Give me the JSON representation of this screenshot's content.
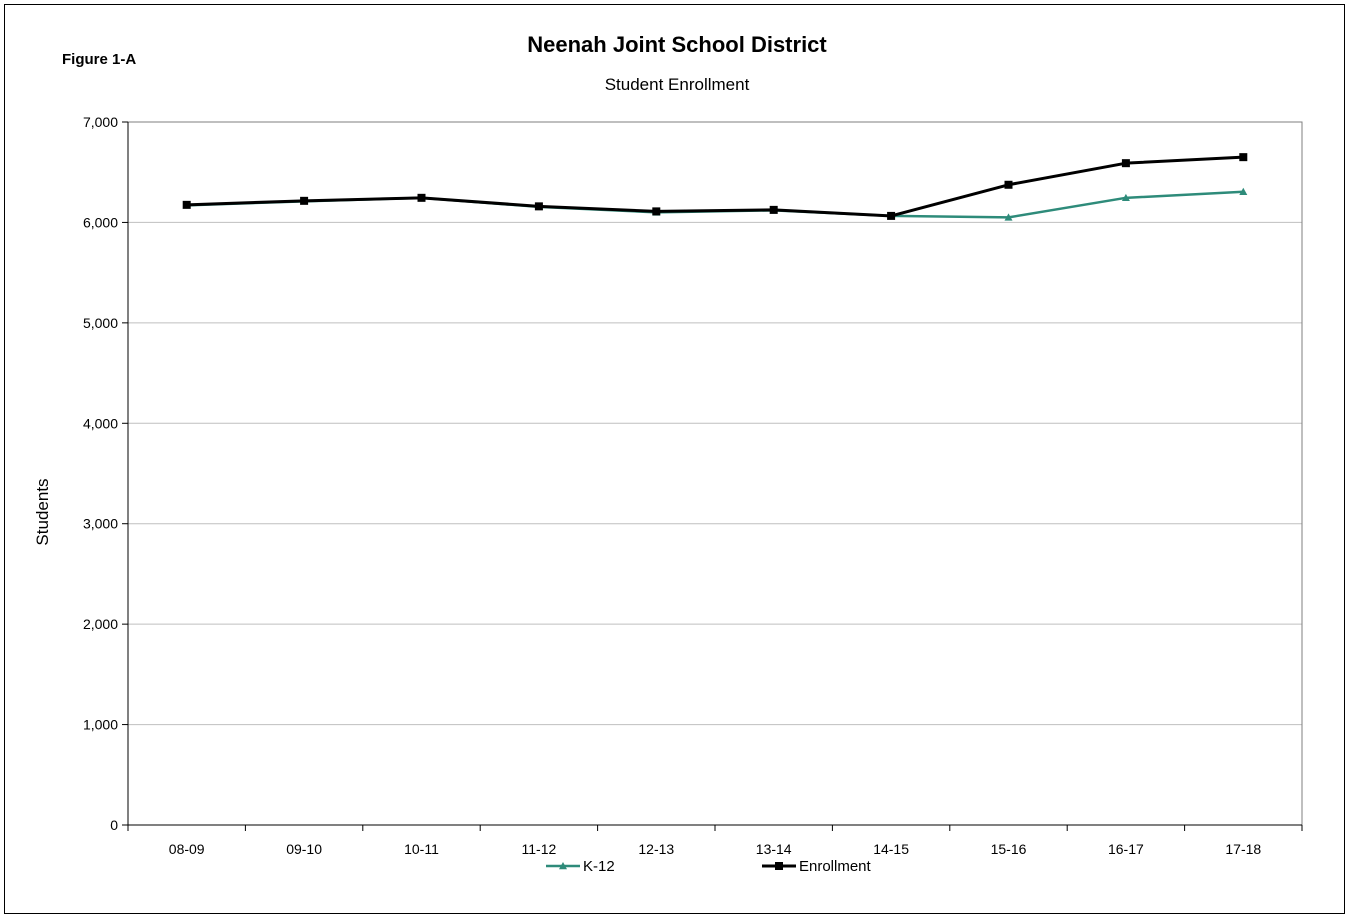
{
  "figure_label": "Figure 1-A",
  "chart_data": {
    "type": "line",
    "title": "Neenah Joint  School District",
    "subtitle": "Student Enrollment",
    "xlabel": "",
    "ylabel": "Students",
    "categories": [
      "08-09",
      "09-10",
      "10-11",
      "11-12",
      "12-13",
      "13-14",
      "14-15",
      "15-16",
      "16-17",
      "17-18"
    ],
    "ylim": [
      0,
      7000
    ],
    "yticks": [
      0,
      1000,
      2000,
      3000,
      4000,
      5000,
      6000,
      7000
    ],
    "ytick_labels": [
      "0",
      "1,000",
      "2,000",
      "3,000",
      "4,000",
      "5,000",
      "6,000",
      "7,000"
    ],
    "grid": true,
    "legend_position": "bottom",
    "series": [
      {
        "name": "K-12",
        "color": "#2e8b7a",
        "marker": "triangle",
        "values": [
          6170,
          6210,
          6245,
          6155,
          6100,
          6120,
          6065,
          6050,
          6245,
          6305
        ]
      },
      {
        "name": "Enrollment",
        "color": "#000000",
        "marker": "square",
        "values": [
          6175,
          6215,
          6245,
          6160,
          6110,
          6125,
          6065,
          6375,
          6590,
          6650
        ]
      }
    ]
  }
}
